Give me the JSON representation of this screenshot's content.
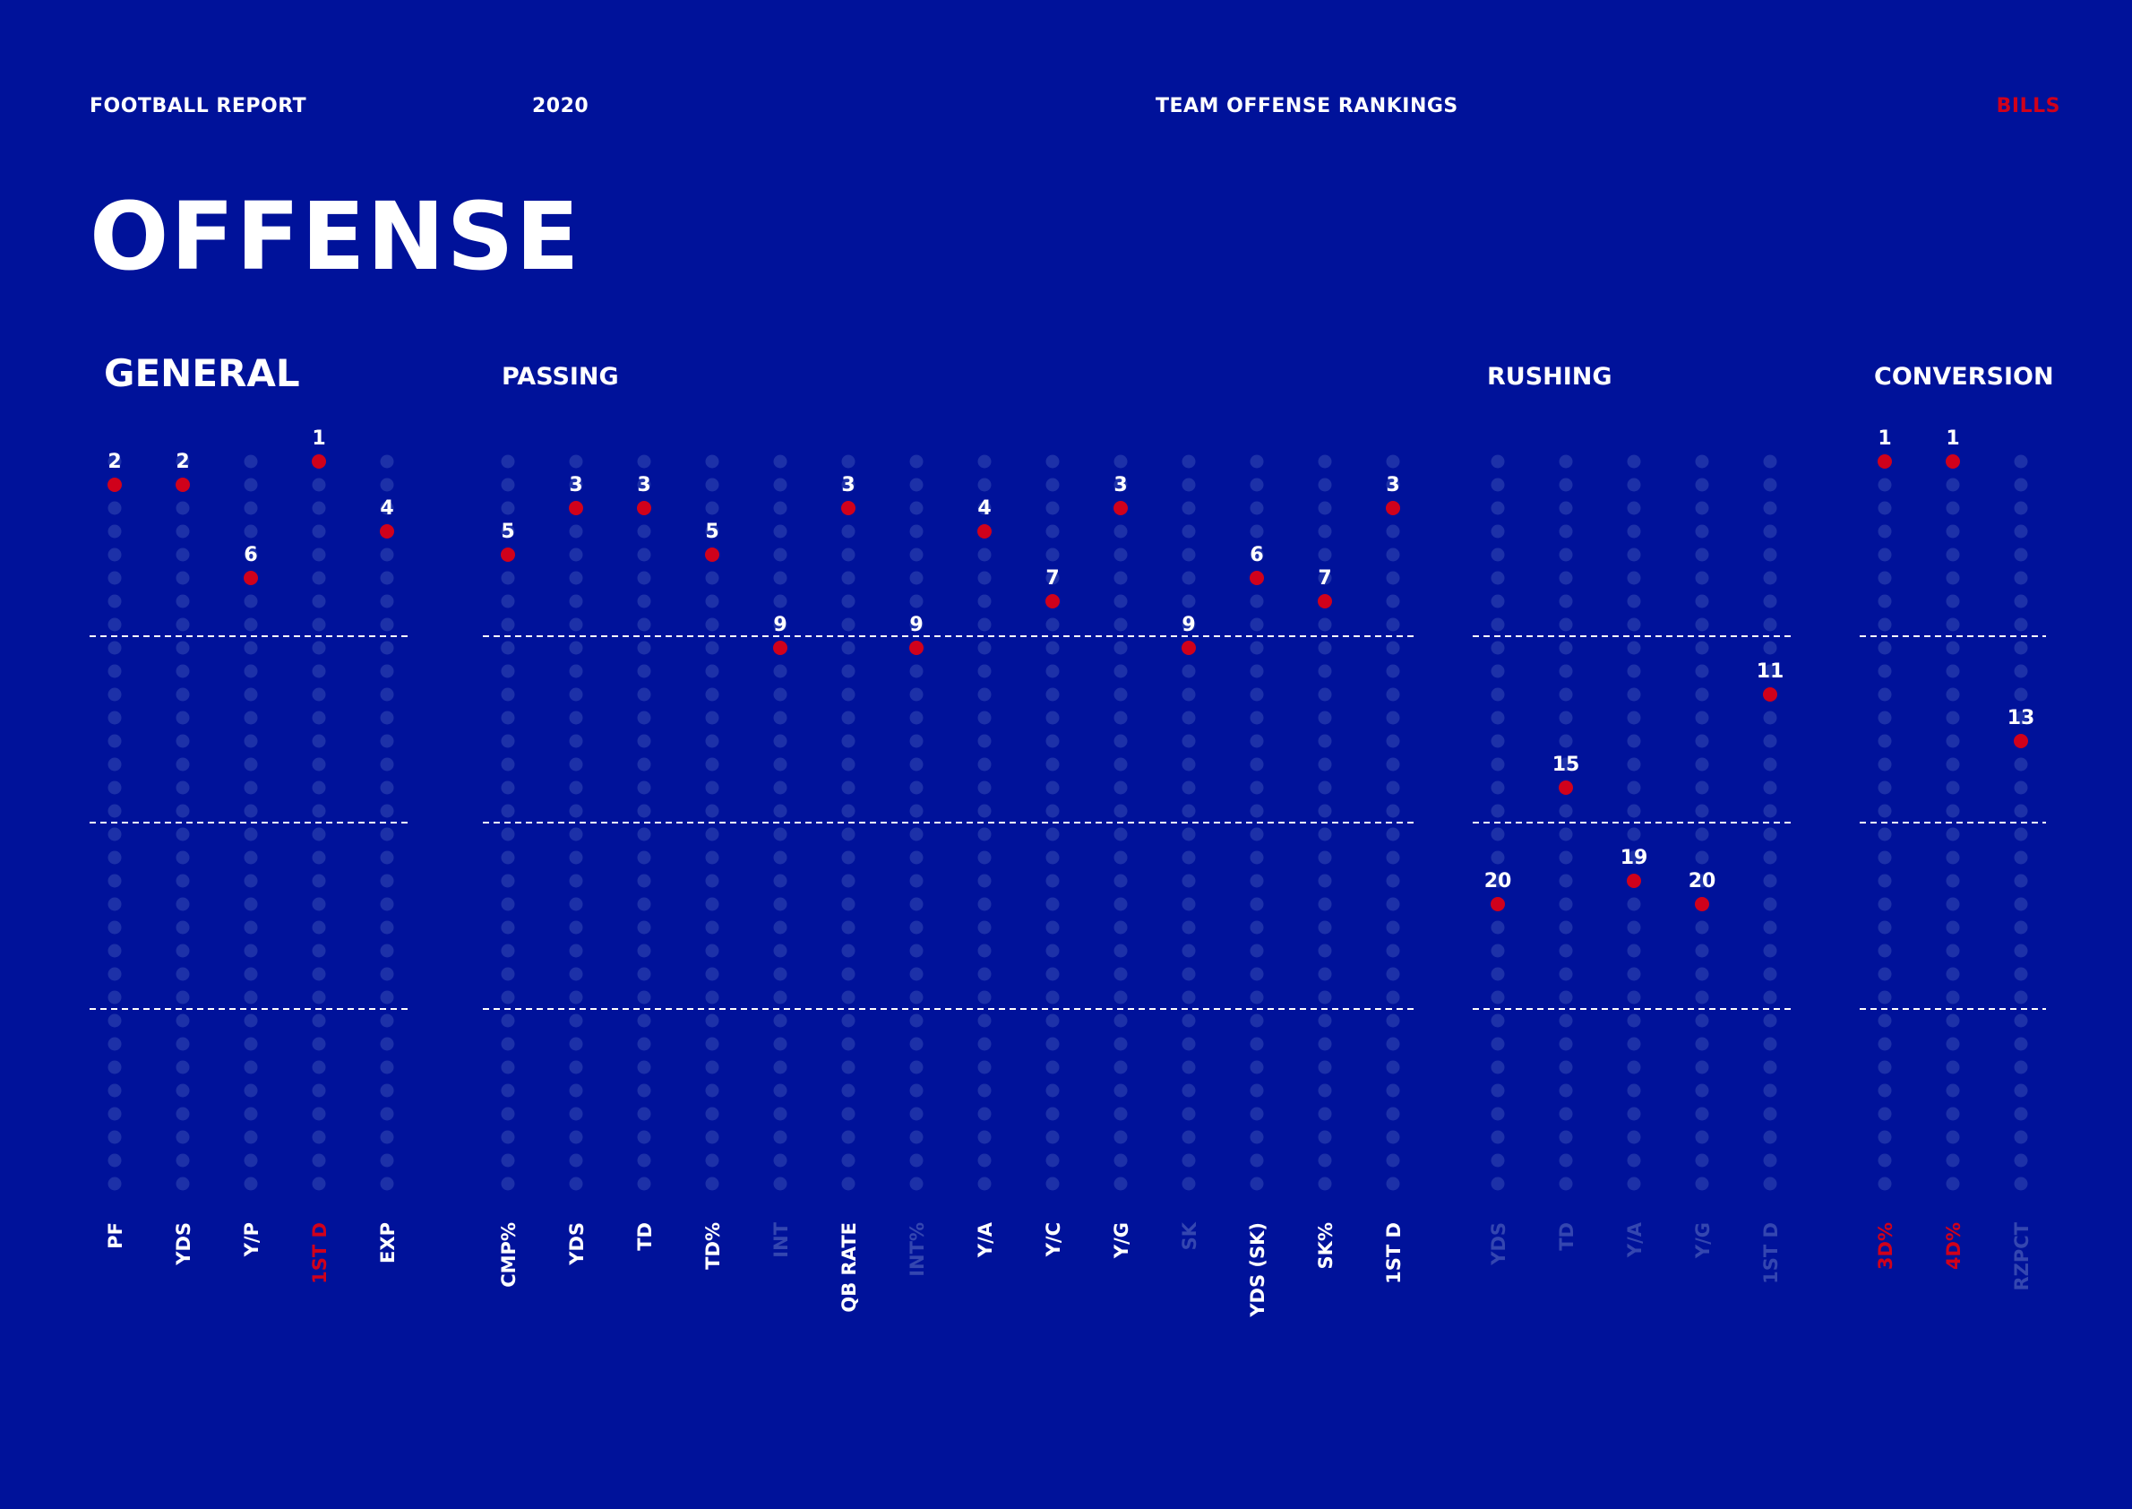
{
  "header": {
    "report": "FOOTBALL REPORT",
    "year": "2020",
    "section": "TEAM OFFENSE RANKINGS",
    "team": "BILLS"
  },
  "title": "OFFENSE",
  "colors": {
    "background": "#00129a",
    "rank_dot": "#d0011b",
    "empty_dot": "#1d31a8",
    "text": "#ffffff",
    "highlight_label": "#d0011b",
    "muted_label": "#3446b0"
  },
  "chart_data": {
    "type": "scatter",
    "y_axis": "rank",
    "ylim": [
      1,
      32
    ],
    "y_inverted": true,
    "reference_lines": [
      8.5,
      16.5,
      24.5
    ],
    "groups": [
      {
        "name": "GENERAL",
        "stats": [
          {
            "label": "PF",
            "rank": 2,
            "label_style": "normal"
          },
          {
            "label": "YDS",
            "rank": 2,
            "label_style": "normal"
          },
          {
            "label": "Y/P",
            "rank": 6,
            "label_style": "normal"
          },
          {
            "label": "1ST D",
            "rank": 1,
            "label_style": "highlight"
          },
          {
            "label": "EXP",
            "rank": 4,
            "label_style": "normal"
          }
        ]
      },
      {
        "name": "PASSING",
        "stats": [
          {
            "label": "CMP%",
            "rank": 5,
            "label_style": "normal"
          },
          {
            "label": "YDS",
            "rank": 3,
            "label_style": "normal"
          },
          {
            "label": "TD",
            "rank": 3,
            "label_style": "normal"
          },
          {
            "label": "TD%",
            "rank": 5,
            "label_style": "normal"
          },
          {
            "label": "INT",
            "rank": 9,
            "label_style": "muted"
          },
          {
            "label": "QB RATE",
            "rank": 3,
            "label_style": "normal"
          },
          {
            "label": "INT%",
            "rank": 9,
            "label_style": "muted"
          },
          {
            "label": "Y/A",
            "rank": 4,
            "label_style": "normal"
          },
          {
            "label": "Y/C",
            "rank": 7,
            "label_style": "normal"
          },
          {
            "label": "Y/G",
            "rank": 3,
            "label_style": "normal"
          },
          {
            "label": "SK",
            "rank": 9,
            "label_style": "muted"
          },
          {
            "label": "YDS (SK)",
            "rank": 6,
            "label_style": "normal"
          },
          {
            "label": "SK%",
            "rank": 7,
            "label_style": "normal"
          },
          {
            "label": "1ST D",
            "rank": 3,
            "label_style": "normal"
          }
        ]
      },
      {
        "name": "RUSHING",
        "stats": [
          {
            "label": "YDS",
            "rank": 20,
            "label_style": "muted"
          },
          {
            "label": "TD",
            "rank": 15,
            "label_style": "muted"
          },
          {
            "label": "Y/A",
            "rank": 19,
            "label_style": "muted"
          },
          {
            "label": "Y/G",
            "rank": 20,
            "label_style": "muted"
          },
          {
            "label": "1ST D",
            "rank": 11,
            "label_style": "muted"
          }
        ]
      },
      {
        "name": "CONVERSION",
        "stats": [
          {
            "label": "3D%",
            "rank": 1,
            "label_style": "highlight"
          },
          {
            "label": "4D%",
            "rank": 1,
            "label_style": "highlight"
          },
          {
            "label": "RZPCT",
            "rank": 13,
            "label_style": "muted"
          }
        ]
      }
    ]
  }
}
